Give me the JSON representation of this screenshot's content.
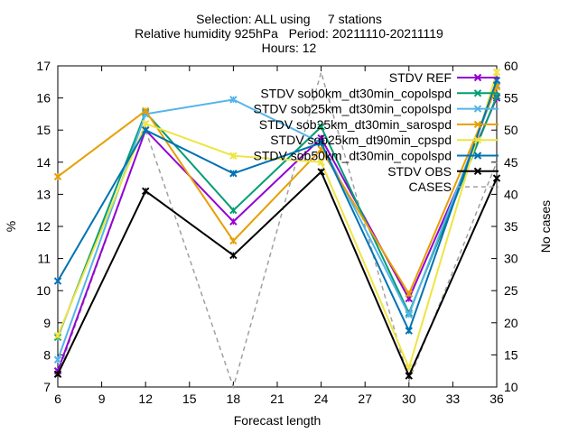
{
  "chart_data": {
    "type": "line",
    "title_lines": [
      "Selection: ALL using     7 stations",
      "Relative humidity 925hPa   Period: 20211110-20211119",
      "Hours: 12"
    ],
    "xlabel": "Forecast length",
    "ylabel": "%",
    "y2label": "No cases",
    "xlim": [
      6,
      36
    ],
    "xticks": [
      6,
      9,
      12,
      15,
      18,
      21,
      24,
      27,
      30,
      33,
      36
    ],
    "ylim": [
      7,
      17
    ],
    "yticks": [
      7,
      8,
      9,
      10,
      11,
      12,
      13,
      14,
      15,
      16,
      17
    ],
    "y2lim": [
      10,
      60
    ],
    "y2ticks": [
      10,
      15,
      20,
      25,
      30,
      35,
      40,
      45,
      50,
      55,
      60
    ],
    "grid": false,
    "legend_position": "top-right",
    "x": [
      6,
      12,
      18,
      24,
      30,
      36
    ],
    "series": [
      {
        "name": "STDV REF",
        "color": "#9400d3",
        "values": [
          7.5,
          15.0,
          12.15,
          14.75,
          9.75,
          16.0
        ],
        "axis": "y1",
        "marker": "x"
      },
      {
        "name": "STDV sob0km_dt30min_copolspd",
        "color": "#009e73",
        "values": [
          8.55,
          15.55,
          12.5,
          15.1,
          9.3,
          16.05
        ],
        "axis": "y1",
        "marker": "x"
      },
      {
        "name": "STDV sob25km_dt30min_copolspd",
        "color": "#56b4e9",
        "values": [
          7.85,
          15.5,
          15.95,
          14.6,
          9.25,
          16.4
        ],
        "axis": "y1",
        "marker": "x"
      },
      {
        "name": "STDV sob25km_dt30min_sarospd",
        "color": "#e69f00",
        "values": [
          13.55,
          15.6,
          11.55,
          14.4,
          9.9,
          16.35
        ],
        "axis": "y1",
        "marker": "x"
      },
      {
        "name": "STDV sob25km_dt90min_cpspd",
        "color": "#f0e442",
        "values": [
          8.6,
          15.2,
          14.2,
          14.0,
          7.6,
          16.8
        ],
        "axis": "y1",
        "marker": "x"
      },
      {
        "name": "STDV sob50km_dt30min_copolspd",
        "color": "#0072b2",
        "values": [
          10.3,
          15.0,
          13.65,
          14.6,
          8.75,
          16.55
        ],
        "axis": "y1",
        "marker": "x"
      },
      {
        "name": "STDV OBS",
        "color": "#000000",
        "values": [
          7.4,
          13.1,
          11.1,
          13.7,
          7.35,
          13.5
        ],
        "axis": "y1",
        "marker": "x"
      },
      {
        "name": "CASES",
        "color": "#a0a0a0",
        "values": [
          12,
          50,
          10,
          59,
          11,
          45
        ],
        "axis": "y2",
        "marker": "none",
        "dashed": true
      }
    ]
  }
}
